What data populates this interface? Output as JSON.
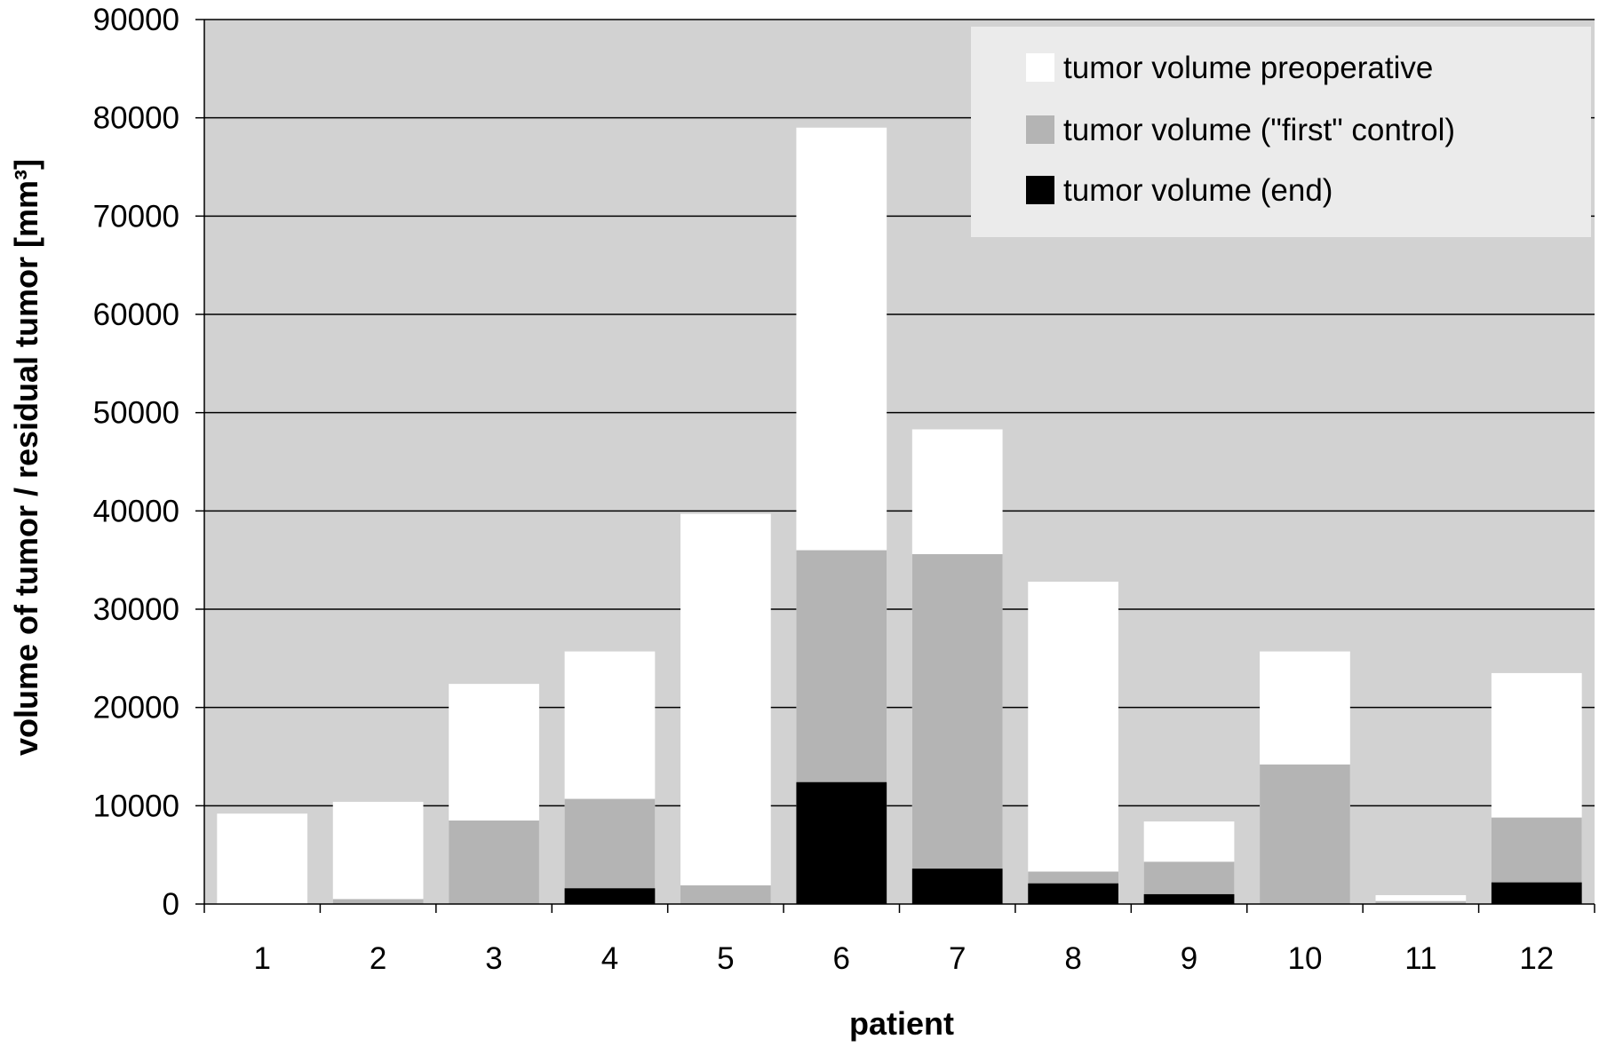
{
  "chart_data": {
    "type": "bar",
    "layout": "overlapping",
    "xlabel": "patient",
    "ylabel": "volume of tumor / residual tumor [mm³]",
    "ylim": [
      0,
      90000
    ],
    "yticks": [
      "0",
      "10000",
      "20000",
      "30000",
      "40000",
      "50000",
      "60000",
      "70000",
      "80000",
      "90000"
    ],
    "categories": [
      "1",
      "2",
      "3",
      "4",
      "5",
      "6",
      "7",
      "8",
      "9",
      "10",
      "11",
      "12"
    ],
    "grid": true,
    "legend_position": "top-right",
    "series": [
      {
        "name": "tumor volume preoperative",
        "color": "#ffffff",
        "values": [
          9200,
          10400,
          22400,
          25700,
          39700,
          79000,
          48300,
          32800,
          8400,
          25700,
          900,
          23500
        ]
      },
      {
        "name": "tumor volume (\"first\" control)",
        "color": "#b4b4b4",
        "values": [
          0,
          500,
          8500,
          10700,
          1900,
          36000,
          35600,
          3300,
          4300,
          14200,
          300,
          8800
        ]
      },
      {
        "name": "tumor volume (end)",
        "color": "#000000",
        "values": [
          0,
          0,
          0,
          1600,
          0,
          12400,
          3600,
          2100,
          1000,
          0,
          0,
          2200
        ]
      }
    ],
    "plot_background": "#d2d2d2"
  }
}
